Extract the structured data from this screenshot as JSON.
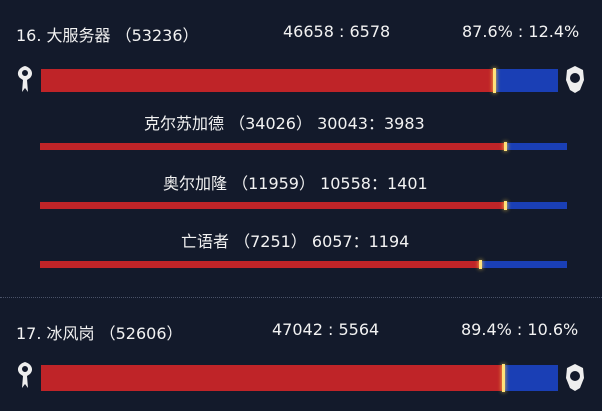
{
  "colors": {
    "horde": "#bf2428",
    "alliance": "#1a3fb5",
    "marker": "#ffe27a",
    "background": "#131a2b"
  },
  "rows": [
    {
      "title": "16. 大服务器 （53236）",
      "counts": "46658 : 6578",
      "percent": "87.6% : 12.4%",
      "horde_fraction": 0.876,
      "subs": [
        {
          "label": "克尔苏加德 （34026） 30043：3983",
          "horde_fraction": 0.883
        },
        {
          "label": "奥尔加隆 （11959） 10558：1401",
          "horde_fraction": 0.883
        },
        {
          "label": "亡语者 （7251） 6057：1194",
          "horde_fraction": 0.835
        }
      ]
    },
    {
      "title": "17. 冰风岗 （52606）",
      "counts": "47042 : 5564",
      "percent": "89.4% : 10.6%",
      "horde_fraction": 0.894
    }
  ]
}
